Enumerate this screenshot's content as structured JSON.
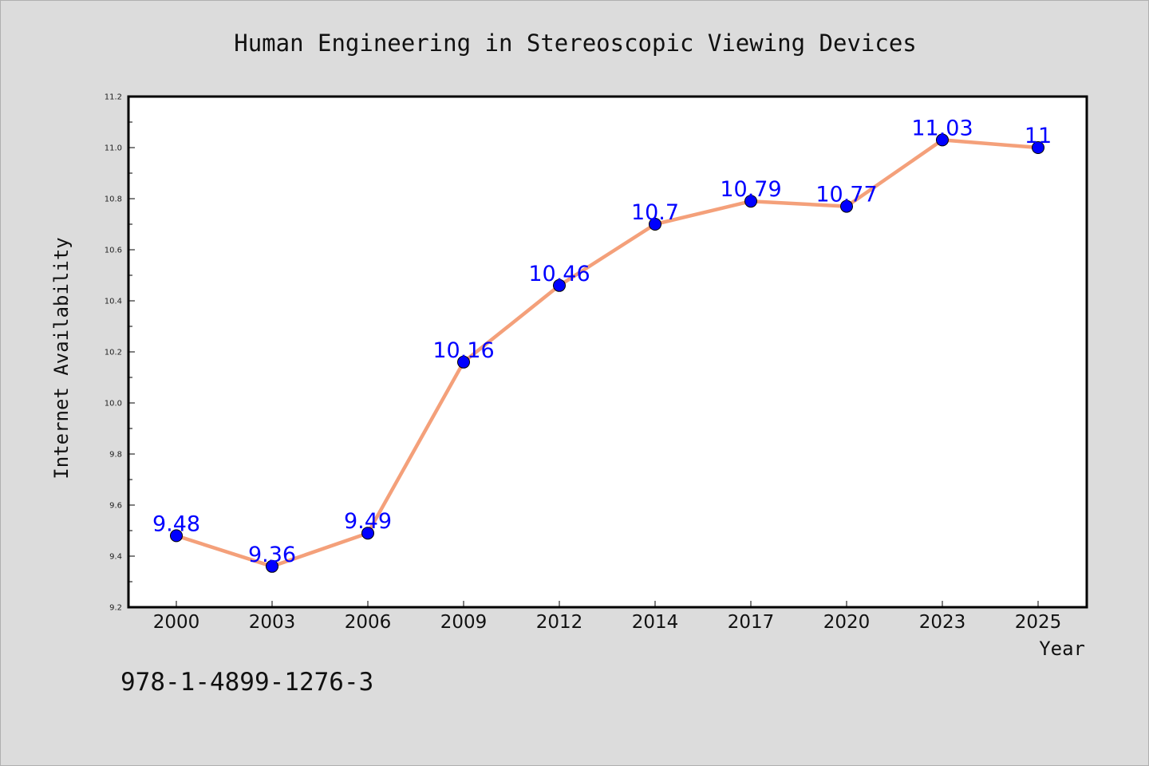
{
  "chart_data": {
    "type": "line",
    "title": "Human Engineering in Stereoscopic Viewing Devices",
    "xlabel": "Year",
    "ylabel": "Internet Availability",
    "categories": [
      "2000",
      "2003",
      "2006",
      "2009",
      "2012",
      "2014",
      "2017",
      "2020",
      "2023",
      "2025"
    ],
    "series": [
      {
        "values": [
          9.48,
          9.36,
          9.49,
          10.16,
          10.46,
          10.7,
          10.79,
          10.77,
          11.03,
          11.0
        ],
        "data_labels": [
          "9.48",
          "9.36",
          "9.49",
          "10.16",
          "10.46",
          "10.7",
          "10.79",
          "10.77",
          "11.03",
          "11"
        ],
        "line_color": "#f4a07a",
        "marker_color": "#0000ff"
      }
    ],
    "ylim": [
      9.2,
      11.2
    ],
    "yticks": [
      "9.2",
      "9.4",
      "9.6",
      "9.8",
      "10.0",
      "10.2",
      "10.4",
      "10.6",
      "10.8",
      "11.0",
      "11.2"
    ],
    "grid": false,
    "legend": "none"
  },
  "footer": {
    "isbn": "978-1-4899-1276-3"
  }
}
